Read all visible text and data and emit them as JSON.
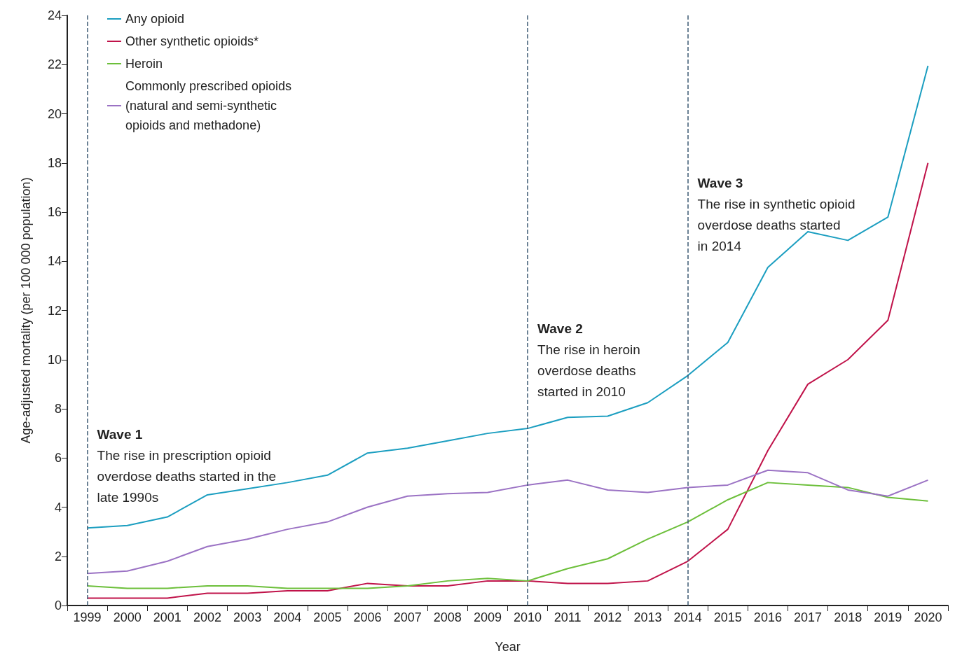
{
  "chart_data": {
    "type": "line",
    "xlabel": "Year",
    "ylabel": "Age-adjusted mortality (per 100 000 population)",
    "categories": [
      "1999",
      "2000",
      "2001",
      "2002",
      "2003",
      "2004",
      "2005",
      "2006",
      "2007",
      "2008",
      "2009",
      "2010",
      "2011",
      "2012",
      "2013",
      "2014",
      "2015",
      "2016",
      "2017",
      "2018",
      "2019",
      "2020"
    ],
    "series": [
      {
        "name": "Any opioid",
        "color": "#1b9ec0",
        "values": [
          3.15,
          3.25,
          3.6,
          4.5,
          4.75,
          5.0,
          5.3,
          6.2,
          6.4,
          6.7,
          7.0,
          7.2,
          7.65,
          7.7,
          8.25,
          9.35,
          10.7,
          13.75,
          15.2,
          14.85,
          15.8,
          21.95
        ]
      },
      {
        "name": "Other synthetic opioids*",
        "color": "#c0134a",
        "values": [
          0.3,
          0.3,
          0.3,
          0.5,
          0.5,
          0.6,
          0.6,
          0.9,
          0.8,
          0.8,
          1.0,
          1.0,
          0.9,
          0.9,
          1.0,
          1.8,
          3.1,
          6.3,
          9.0,
          10.0,
          11.6,
          18.0
        ]
      },
      {
        "name": "Heroin",
        "color": "#6cbf3a",
        "values": [
          0.8,
          0.7,
          0.7,
          0.8,
          0.8,
          0.7,
          0.7,
          0.7,
          0.8,
          1.0,
          1.1,
          1.0,
          1.5,
          1.9,
          2.7,
          3.4,
          4.3,
          5.0,
          4.9,
          4.8,
          4.4,
          4.25
        ]
      },
      {
        "name": "Commonly prescribed opioids (natural and semi-synthetic opioids and methadone)",
        "color": "#9b72c4",
        "values": [
          1.3,
          1.4,
          1.8,
          2.4,
          2.7,
          3.1,
          3.4,
          4.0,
          4.45,
          4.55,
          4.6,
          4.9,
          5.1,
          4.7,
          4.6,
          4.8,
          4.9,
          5.5,
          5.4,
          4.7,
          4.45,
          5.1
        ]
      }
    ],
    "ylim": [
      0,
      24
    ],
    "yticks": [
      0,
      2,
      4,
      6,
      8,
      10,
      12,
      14,
      16,
      18,
      20,
      22,
      24
    ],
    "grid": false,
    "legend": "top left",
    "marker": "none",
    "line_style": "solid",
    "ref_lines": [
      {
        "axis": "x",
        "value": "1999",
        "label": null,
        "color": "#3d5a73",
        "line_style": "dashed"
      },
      {
        "axis": "x",
        "value": "2010",
        "label": null,
        "color": "#3d5a73",
        "line_style": "dashed"
      },
      {
        "axis": "x",
        "value": "2014",
        "label": null,
        "color": "#3d5a73",
        "line_style": "dashed"
      }
    ],
    "annotations": [
      {
        "text": "Wave 1\nThe rise in prescription opioid\noverdose deaths started in the\nlate 1990s",
        "x": "1999",
        "y": 7.4
      },
      {
        "text": "Wave 2\nThe rise in heroin\noverdose deaths\nstarted in 2010",
        "x": "2010",
        "y": 11.7
      },
      {
        "text": "Wave 3\nThe rise in synthetic opioid\noverdose deaths started\nin 2014",
        "x": "2014",
        "y": 17.6
      }
    ]
  }
}
